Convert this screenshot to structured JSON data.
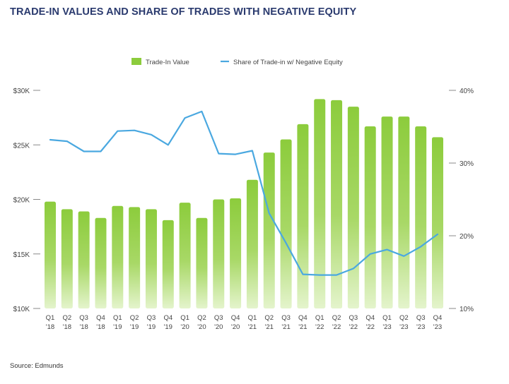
{
  "title": "TRADE-IN VALUES AND SHARE OF TRADES WITH NEGATIVE EQUITY",
  "source": "Source: Edmunds",
  "colors": {
    "bar_top": "#8ccc3c",
    "bar_bottom": "#e4f4cc",
    "line": "#4aa8e0",
    "axis_text": "#444444",
    "tick": "#888888",
    "title": "#2a3a6e"
  },
  "chart_data": {
    "type": "bar",
    "categories": [
      [
        "Q1",
        "'18"
      ],
      [
        "Q2",
        "'18"
      ],
      [
        "Q3",
        "'18"
      ],
      [
        "Q4",
        "'18"
      ],
      [
        "Q1",
        "'19"
      ],
      [
        "Q2",
        "'19"
      ],
      [
        "Q3",
        "'19"
      ],
      [
        "Q4",
        "'19"
      ],
      [
        "Q1",
        "'20"
      ],
      [
        "Q2",
        "'20"
      ],
      [
        "Q3",
        "'20"
      ],
      [
        "Q4",
        "'20"
      ],
      [
        "Q1",
        "'21"
      ],
      [
        "Q2",
        "'21"
      ],
      [
        "Q3",
        "'21"
      ],
      [
        "Q4",
        "'21"
      ],
      [
        "Q1",
        "'22"
      ],
      [
        "Q2",
        "'22"
      ],
      [
        "Q3",
        "'22"
      ],
      [
        "Q4",
        "'22"
      ],
      [
        "Q1",
        "'23"
      ],
      [
        "Q2",
        "'23"
      ],
      [
        "Q3",
        "'23"
      ],
      [
        "Q4",
        "'23"
      ]
    ],
    "series": [
      {
        "name": "Trade-In Value",
        "type": "bar",
        "axis": "left",
        "values": [
          19800,
          19100,
          18900,
          18300,
          19400,
          19300,
          19100,
          18100,
          19700,
          18300,
          20000,
          20100,
          21800,
          24300,
          25500,
          26900,
          29200,
          29100,
          28500,
          26700,
          27600,
          27600,
          26700,
          25700
        ]
      },
      {
        "name": "Share of Trade-in w/ Negative Equity",
        "type": "line",
        "axis": "right",
        "values": [
          33.2,
          33.0,
          31.6,
          31.6,
          34.4,
          34.5,
          33.9,
          32.5,
          36.2,
          37.1,
          31.3,
          31.2,
          31.7,
          23.1,
          19.0,
          14.7,
          14.6,
          14.6,
          15.5,
          17.5,
          18.1,
          17.2,
          18.5,
          20.2
        ]
      }
    ],
    "y_left": {
      "min": 10000,
      "max": 30000,
      "ticks": [
        10000,
        15000,
        20000,
        25000,
        30000
      ],
      "tick_labels": [
        "$10K",
        "$15K",
        "$20K",
        "$25K",
        "$30K"
      ]
    },
    "y_right": {
      "min": 10,
      "max": 40,
      "ticks": [
        10,
        20,
        30,
        40
      ],
      "tick_labels": [
        "10%",
        "20%",
        "30%",
        "40%"
      ]
    },
    "legend_position": "top-center",
    "grid": false
  }
}
